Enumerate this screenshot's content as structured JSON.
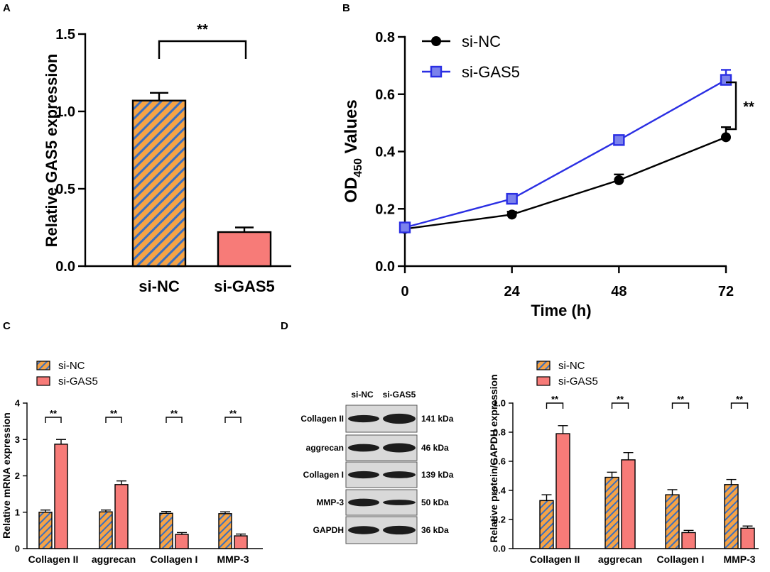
{
  "colors": {
    "orange": "#f5a346",
    "stripe": "#3a6fc0",
    "pink": "#f77b78",
    "black": "#000000",
    "blue": "#2a2ee3",
    "blue_fill": "#7b82ec"
  },
  "panels": {
    "a": {
      "label": "A"
    },
    "b": {
      "label": "B"
    },
    "c": {
      "label": "C"
    },
    "d": {
      "label": "D"
    }
  },
  "chart_data": [
    {
      "id": "A",
      "type": "bar",
      "categories": [
        "si-NC",
        "si-GAS5"
      ],
      "values": [
        1.07,
        0.22
      ],
      "errors": [
        0.05,
        0.03
      ],
      "ylabel": "Relative GAS5 expression",
      "ylim": [
        0,
        1.5
      ],
      "yticks": [
        "0.0",
        "0.5",
        "1.0",
        "1.5"
      ],
      "significance": "**"
    },
    {
      "id": "B",
      "type": "line",
      "x": [
        0,
        24,
        48,
        72
      ],
      "xticks": [
        "0",
        "24",
        "48",
        "72"
      ],
      "xlabel": "Time (h)",
      "ylabel_main": "OD",
      "ylabel_sub": "450",
      "ylabel_rest": " Values",
      "ylim": [
        0,
        0.8
      ],
      "yticks": [
        "0.0",
        "0.2",
        "0.4",
        "0.6",
        "0.8"
      ],
      "series": [
        {
          "name": "si-NC",
          "values": [
            0.13,
            0.18,
            0.3,
            0.45
          ],
          "errors": [
            0.01,
            0.01,
            0.02,
            0.035
          ]
        },
        {
          "name": "si-GAS5",
          "values": [
            0.135,
            0.235,
            0.44,
            0.65
          ],
          "errors": [
            0.01,
            0.01,
            0.015,
            0.035
          ]
        }
      ],
      "significance": "**",
      "legend": "top-left"
    },
    {
      "id": "C",
      "type": "bar",
      "categories": [
        "Collagen II",
        "aggrecan",
        "Collagen I",
        "MMP-3"
      ],
      "ylabel": "Relative mRNA expression",
      "ylim": [
        0,
        4
      ],
      "yticks": [
        "0",
        "1",
        "2",
        "3",
        "4"
      ],
      "series": [
        {
          "name": "si-NC",
          "values": [
            1.0,
            1.01,
            0.97,
            0.96
          ],
          "errors": [
            0.06,
            0.05,
            0.05,
            0.05
          ]
        },
        {
          "name": "si-GAS5",
          "values": [
            2.87,
            1.76,
            0.39,
            0.35
          ],
          "errors": [
            0.13,
            0.1,
            0.05,
            0.05
          ]
        }
      ],
      "significance": [
        "**",
        "**",
        "**",
        "**"
      ]
    },
    {
      "id": "D",
      "type": "bar",
      "categories": [
        "Collagen II",
        "aggrecan",
        "Collagen I",
        "MMP-3"
      ],
      "ylabel": "Relative protein/GAPDH expression",
      "ylim": [
        0,
        1.0
      ],
      "yticks": [
        "0.0",
        "0.2",
        "0.4",
        "0.6",
        "0.8",
        "1.0"
      ],
      "series": [
        {
          "name": "si-NC",
          "values": [
            0.33,
            0.49,
            0.37,
            0.44
          ],
          "errors": [
            0.04,
            0.035,
            0.035,
            0.035
          ]
        },
        {
          "name": "si-GAS5",
          "values": [
            0.79,
            0.61,
            0.11,
            0.14
          ],
          "errors": [
            0.055,
            0.05,
            0.015,
            0.015
          ]
        }
      ],
      "significance": [
        "**",
        "**",
        "**",
        "**"
      ]
    }
  ],
  "blot": {
    "columns": [
      "si-NC",
      "si-GAS5"
    ],
    "rows": [
      {
        "protein": "Collagen II",
        "size": "141 kDa"
      },
      {
        "protein": "aggrecan",
        "size": "46 kDa"
      },
      {
        "protein": "Collagen I",
        "size": "139 kDa"
      },
      {
        "protein": "MMP-3",
        "size": "50 kDa"
      },
      {
        "protein": "GAPDH",
        "size": "36 kDa"
      }
    ]
  }
}
